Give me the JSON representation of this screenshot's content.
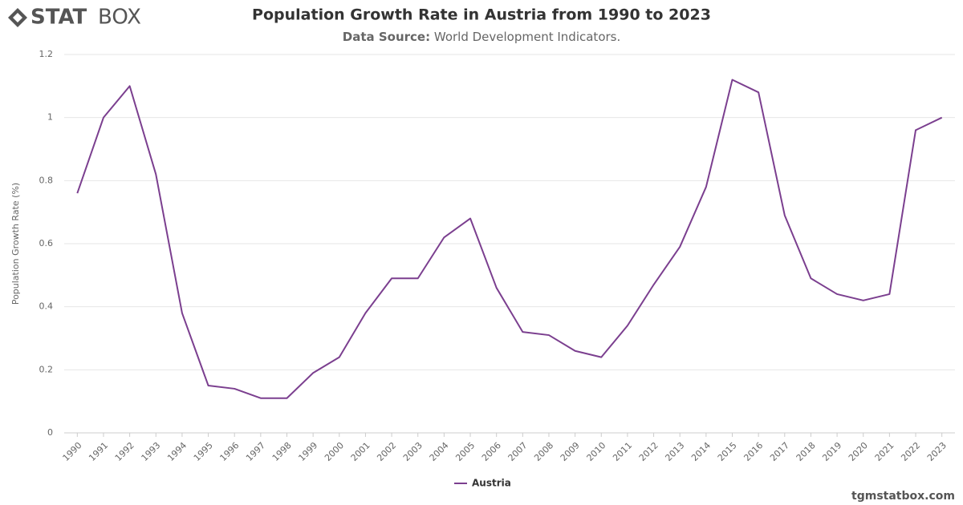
{
  "brand": {
    "logo_bold": "STAT",
    "logo_light": "BOX",
    "website": "tgmstatbox.com"
  },
  "chart_data": {
    "type": "line",
    "title": "Population Growth Rate in Austria from 1990 to 2023",
    "subtitle_label": "Data Source:",
    "subtitle": "World Development Indicators.",
    "y_label": "Population Growth Rate (%)",
    "categories": [
      "1990",
      "1991",
      "1992",
      "1993",
      "1994",
      "1995",
      "1996",
      "1997",
      "1998",
      "1999",
      "2000",
      "2001",
      "2002",
      "2003",
      "2004",
      "2005",
      "2006",
      "2007",
      "2008",
      "2009",
      "2010",
      "2011",
      "2012",
      "2013",
      "2014",
      "2015",
      "2016",
      "2017",
      "2018",
      "2019",
      "2020",
      "2021",
      "2022",
      "2023"
    ],
    "series": [
      {
        "name": "Austria",
        "color": "#7b3f8f",
        "values": [
          0.76,
          1.0,
          1.1,
          0.82,
          0.38,
          0.15,
          0.14,
          0.11,
          0.11,
          0.19,
          0.24,
          0.38,
          0.49,
          0.49,
          0.62,
          0.68,
          0.46,
          0.32,
          0.31,
          0.26,
          0.24,
          0.34,
          0.47,
          0.59,
          0.78,
          1.12,
          1.08,
          0.69,
          0.49,
          0.44,
          0.42,
          0.44,
          0.96,
          1.0
        ]
      }
    ],
    "ylim": [
      0,
      1.2
    ],
    "yticks": [
      0,
      0.2,
      0.4,
      0.6,
      0.8,
      1,
      1.2
    ],
    "grid": true,
    "legend": "bottom"
  }
}
